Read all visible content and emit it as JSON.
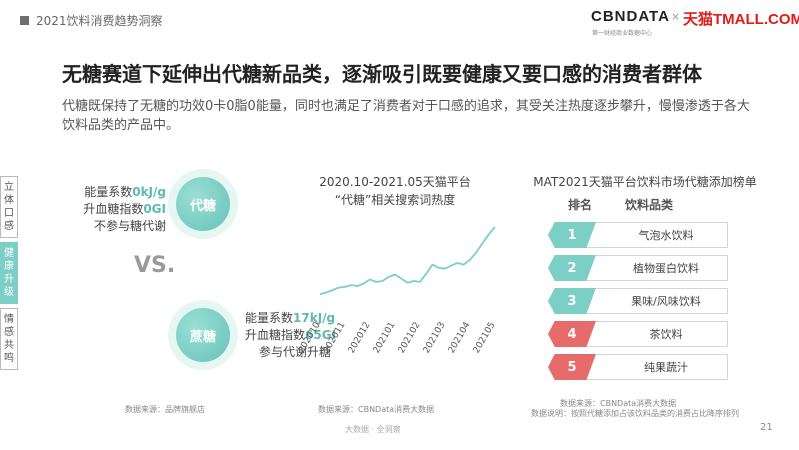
{
  "header": {
    "report_title": "2021饮料消费趋势洞察",
    "logo_cbn": "CBNDATA",
    "logo_cbn_sub": "第一财经商业数据中心",
    "logo_x": "×",
    "logo_tmall": "天猫TMALL.COM"
  },
  "main_title": "无糖赛道下延伸出代糖新品类，逐渐吸引既要健康又要口感的消费者群体",
  "description": "代糖既保持了无糖的功效0卡0脂0能量，同时也满足了消费者对于口感的追求，其受关注热度逐步攀升，慢慢渗透于各大饮料品类的产品中。",
  "sidebar": {
    "tabs": [
      {
        "label": "立体口感"
      },
      {
        "label": "健康升级"
      },
      {
        "label": "情感共鸣"
      }
    ]
  },
  "comparison": {
    "daitang": {
      "label": "代糖",
      "energy_prefix": "能量系数",
      "energy_value": "0kJ/g",
      "gi_prefix": "升血糖指数",
      "gi_value": "0GI",
      "metabolism": "不参与糖代谢"
    },
    "vs": "VS.",
    "zhetang": {
      "label": "蔗糖",
      "energy_prefix": "能量系数",
      "energy_value": "17kJ/g",
      "gi_prefix": "升血糖指数",
      "gi_value": "65GI",
      "metabolism": "参与代谢升糖"
    },
    "source": "数据来源：品牌旗舰店"
  },
  "line_chart": {
    "title_line1": "2020.10-2021.05天猫平台",
    "title_line2": "“代糖”相关搜索词热度",
    "source": "数据来源：CBNData消费大数据"
  },
  "ranking": {
    "title": "MAT2021天猫平台饮料市场代糖添加榜单",
    "col_rank": "排名",
    "col_category": "饮料品类",
    "source_line1": "数据来源：CBNData消费大数据",
    "source_line2": "数据说明：按照代糖添加占该饮料品类的消费占比降序排列",
    "items": [
      {
        "rank": "1",
        "category": "气泡水饮料",
        "color": "#7ccfc5"
      },
      {
        "rank": "2",
        "category": "植物蛋白饮料",
        "color": "#7ccfc5"
      },
      {
        "rank": "3",
        "category": "果味/风味饮料",
        "color": "#7ccfc5"
      },
      {
        "rank": "4",
        "category": "茶饮料",
        "color": "#e86b6b"
      },
      {
        "rank": "5",
        "category": "纯果蔬汁",
        "color": "#e86b6b"
      }
    ]
  },
  "footer": "大数据 · 全洞察",
  "page_number": "21",
  "chart_data": {
    "type": "line",
    "title": "2020.10-2021.05天猫平台 “代糖”相关搜索词热度",
    "categories": [
      "202010",
      "202011",
      "202012",
      "202101",
      "202102",
      "202103",
      "202104",
      "202105"
    ],
    "x": [
      0,
      0.25,
      0.5,
      0.75,
      1,
      1.25,
      1.5,
      1.75,
      2,
      2.25,
      2.5,
      2.75,
      3,
      3.25,
      3.5,
      3.75,
      4,
      4.25,
      4.5,
      4.75,
      5,
      5.25,
      5.5,
      5.75,
      6,
      6.25,
      6.5,
      6.75,
      7
    ],
    "series": [
      {
        "values": [
          0.12,
          0.14,
          0.17,
          0.2,
          0.21,
          0.23,
          0.22,
          0.25,
          0.3,
          0.27,
          0.28,
          0.33,
          0.36,
          0.31,
          0.26,
          0.28,
          0.27,
          0.37,
          0.48,
          0.44,
          0.43,
          0.47,
          0.5,
          0.48,
          0.54,
          0.63,
          0.74,
          0.85,
          0.94
        ]
      }
    ],
    "color": "#7ccfc5",
    "ylim": [
      0,
      1
    ],
    "axes_visible": false,
    "grid": false,
    "legend": "none"
  }
}
